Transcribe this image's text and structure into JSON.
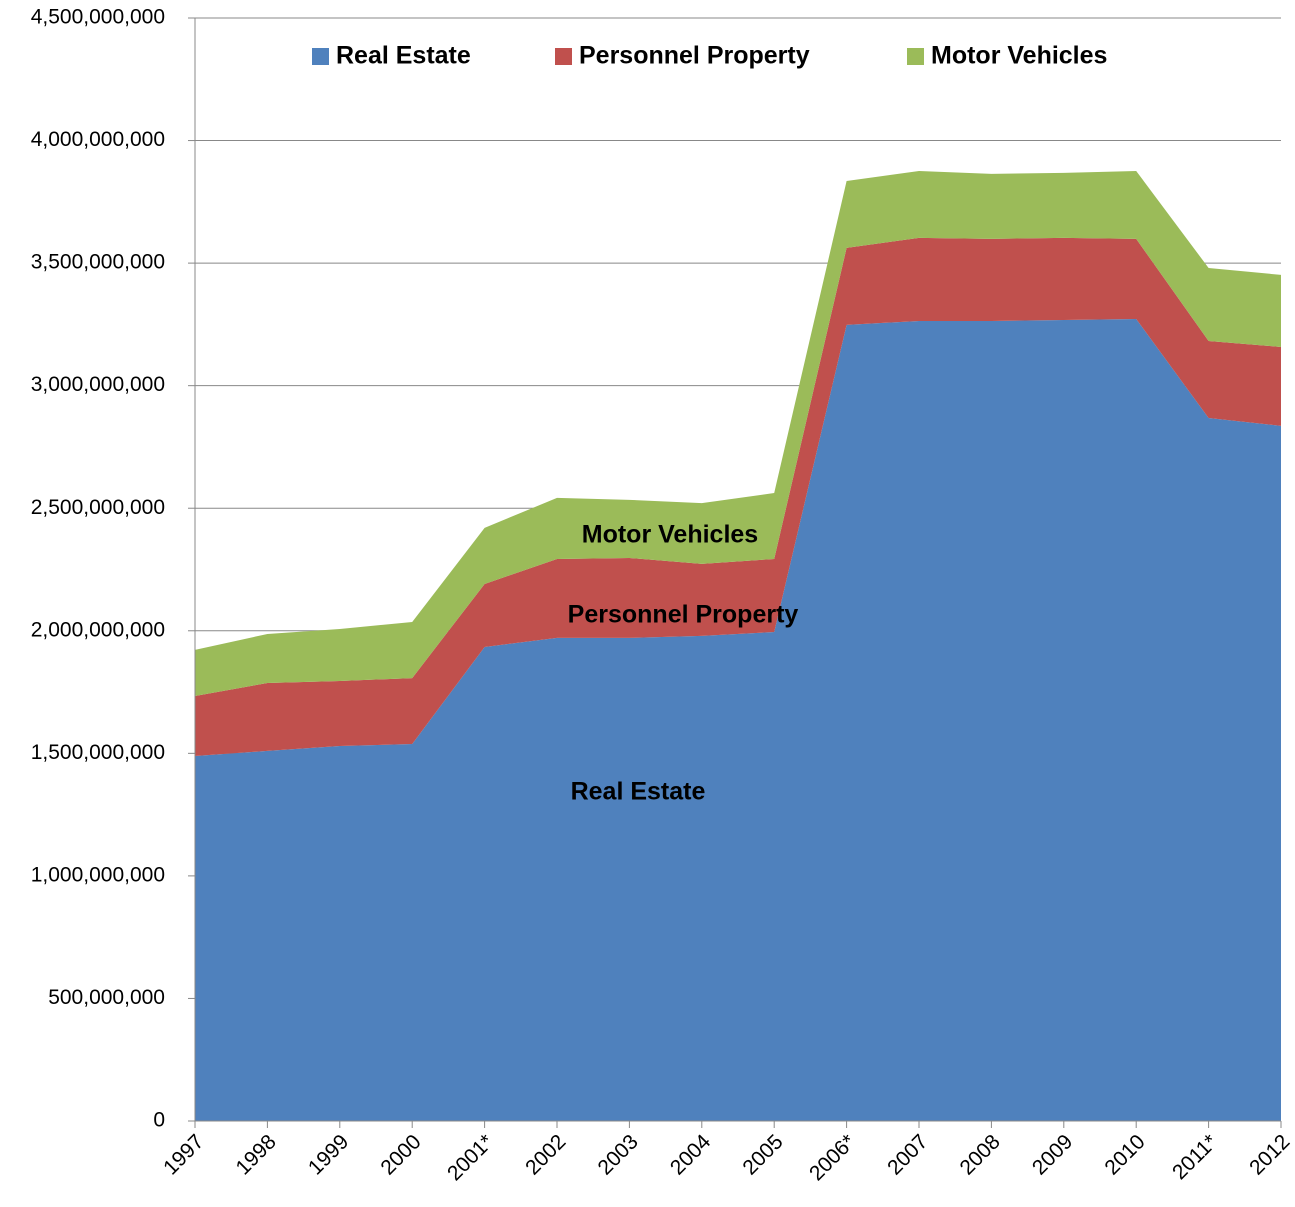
{
  "chart_data": {
    "type": "stacked_area",
    "categories": [
      "1997",
      "1998",
      "1999",
      "2000",
      "2001*",
      "2002",
      "2003",
      "2004",
      "2005",
      "2006*",
      "2007",
      "2008",
      "2009",
      "2010",
      "2011*",
      "2012"
    ],
    "series": [
      {
        "name": "Real Estate",
        "color": "#4f81bd",
        "values": [
          1489000000,
          1510000000,
          1530000000,
          1538000000,
          1934000000,
          1971000000,
          1971000000,
          1979000000,
          1995000000,
          3248000000,
          3264000000,
          3264000000,
          3268000000,
          3272000000,
          2868000000,
          2836000000
        ]
      },
      {
        "name": "Personnel Property",
        "color": "#c0504d",
        "values": [
          245000000,
          277000000,
          265000000,
          269000000,
          257000000,
          322000000,
          326000000,
          294000000,
          298000000,
          314000000,
          339000000,
          335000000,
          335000000,
          327000000,
          314000000,
          322000000
        ]
      },
      {
        "name": "Motor Vehicles",
        "color": "#9bbb59",
        "values": [
          188000000,
          200000000,
          212000000,
          229000000,
          229000000,
          249000000,
          237000000,
          248000000,
          269000000,
          273000000,
          273000000,
          265000000,
          265000000,
          277000000,
          298000000,
          294000000
        ]
      }
    ],
    "ylim": [
      0,
      4500000000
    ],
    "yticks": [
      0,
      {
        "value": 500000000,
        "label": "500,000,000"
      },
      {
        "value": 1000000000,
        "label": "1,000,000,000"
      },
      {
        "value": 1500000000,
        "label": "1,500,000,000"
      },
      {
        "value": 2000000000,
        "label": "2,000,000,000"
      },
      {
        "value": 2500000000,
        "label": "2,500,000,000"
      },
      {
        "value": 3000000000,
        "label": "3,000,000,000"
      },
      {
        "value": 3500000000,
        "label": "3,500,000,000"
      },
      {
        "value": 4000000000,
        "label": "4,000,000,000"
      },
      {
        "value": 4500000000,
        "label": "4,500,000,000"
      }
    ],
    "grid": true,
    "legend": "top"
  }
}
